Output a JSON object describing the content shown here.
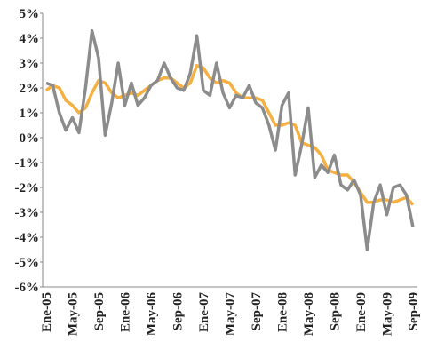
{
  "chart_data": {
    "type": "line",
    "categories": [
      "Ene-05",
      null,
      null,
      null,
      "May-05",
      null,
      null,
      null,
      "Sep-05",
      null,
      null,
      null,
      "Ene-06",
      null,
      null,
      null,
      "May-06",
      null,
      null,
      null,
      "Sep-06",
      null,
      null,
      null,
      "Ene-07",
      null,
      null,
      null,
      "May-07",
      null,
      null,
      null,
      "Sep-07",
      null,
      null,
      null,
      "Ene-08",
      null,
      null,
      null,
      "May-08",
      null,
      null,
      null,
      "Sep-08",
      null,
      null,
      null,
      "Ene-09",
      null,
      null,
      null,
      "May-09",
      null,
      null,
      null,
      "Sep-09"
    ],
    "series": [
      {
        "color": "#f5b041",
        "values": [
          1.9,
          2.1,
          2.0,
          1.5,
          1.3,
          1.0,
          1.2,
          1.8,
          2.3,
          2.2,
          1.8,
          1.6,
          1.7,
          1.8,
          1.7,
          1.9,
          2.1,
          2.3,
          2.4,
          2.4,
          2.2,
          2.0,
          2.2,
          2.9,
          2.8,
          2.4,
          2.2,
          2.3,
          2.2,
          1.8,
          1.6,
          1.6,
          1.6,
          1.5,
          1.0,
          0.5,
          0.5,
          0.6,
          0.5,
          -0.2,
          -0.3,
          -0.4,
          -0.7,
          -1.3,
          -1.4,
          -1.5,
          -1.5,
          -1.8,
          -2.2,
          -2.6,
          -2.6,
          -2.5,
          -2.5,
          -2.6,
          -2.5,
          -2.4,
          -2.7
        ]
      },
      {
        "color": "#8c8c8c",
        "values": [
          2.2,
          2.1,
          1.0,
          0.3,
          0.8,
          0.2,
          2.0,
          4.3,
          3.2,
          0.1,
          1.4,
          3.0,
          1.3,
          2.2,
          1.3,
          1.6,
          2.1,
          2.3,
          3.0,
          2.4,
          2.0,
          1.9,
          2.6,
          4.1,
          1.9,
          1.7,
          3.0,
          1.8,
          1.2,
          1.7,
          1.6,
          2.1,
          1.4,
          1.2,
          0.5,
          -0.5,
          1.3,
          1.8,
          -1.5,
          -0.3,
          1.2,
          -1.6,
          -1.1,
          -1.4,
          -0.7,
          -1.9,
          -2.1,
          -1.7,
          -2.3,
          -4.5,
          -2.6,
          -1.9,
          -3.1,
          -2.0,
          -1.9,
          -2.3,
          -3.6
        ]
      }
    ],
    "ylim": [
      -6,
      5
    ],
    "yticks": [
      {
        "value": 5,
        "label": "5%"
      },
      {
        "value": 4,
        "label": "4%"
      },
      {
        "value": 3,
        "label": "3%"
      },
      {
        "value": 2,
        "label": "2%"
      },
      {
        "value": 1,
        "label": "1%"
      },
      {
        "value": 0,
        "label": "0%"
      },
      {
        "value": -1,
        "label": "-1%"
      },
      {
        "value": -2,
        "label": "-2%"
      },
      {
        "value": -3,
        "label": "-3%"
      },
      {
        "value": -4,
        "label": "-4%"
      },
      {
        "value": -5,
        "label": "-5%"
      },
      {
        "value": -6,
        "label": "-6%"
      }
    ],
    "grid": false
  }
}
